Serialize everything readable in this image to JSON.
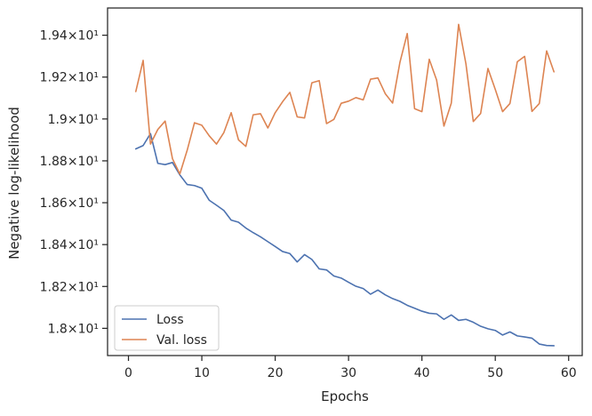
{
  "chart_data": {
    "type": "line",
    "title": "",
    "xlabel": "Epochs",
    "ylabel": "Negative log-likelihood",
    "xlim": [
      -2.85,
      61.85
    ],
    "ylim": [
      17.87,
      19.53
    ],
    "grid": false,
    "legend_position": "lower-left",
    "x_ticks": [
      0,
      10,
      20,
      30,
      40,
      50,
      60
    ],
    "x_tick_labels": [
      "0",
      "10",
      "20",
      "30",
      "40",
      "50",
      "60"
    ],
    "y_ticks": [
      18.0,
      18.2,
      18.4,
      18.6,
      18.8,
      19.0,
      19.2,
      19.4
    ],
    "y_tick_labels": [
      "1.8×10¹",
      "1.82×10¹",
      "1.84×10¹",
      "1.86×10¹",
      "1.88×10¹",
      "1.9×10¹",
      "1.92×10¹",
      "1.94×10¹"
    ],
    "x": [
      1,
      2,
      3,
      4,
      5,
      6,
      7,
      8,
      9,
      10,
      11,
      12,
      13,
      14,
      15,
      16,
      17,
      18,
      19,
      20,
      21,
      22,
      23,
      24,
      25,
      26,
      27,
      28,
      29,
      30,
      31,
      32,
      33,
      34,
      35,
      36,
      37,
      38,
      39,
      40,
      41,
      42,
      43,
      44,
      45,
      46,
      47,
      48,
      49,
      50,
      51,
      52,
      53,
      54,
      55,
      56,
      57,
      58
    ],
    "series": [
      {
        "name": "Loss",
        "color": "#4c72b0",
        "values": [
          18.857,
          18.873,
          18.93,
          18.788,
          18.782,
          18.792,
          18.733,
          18.687,
          18.682,
          18.669,
          18.612,
          18.588,
          18.563,
          18.517,
          18.507,
          18.479,
          18.457,
          18.437,
          18.414,
          18.391,
          18.367,
          18.357,
          18.317,
          18.352,
          18.329,
          18.284,
          18.279,
          18.25,
          18.24,
          18.22,
          18.201,
          18.19,
          18.163,
          18.183,
          18.16,
          18.142,
          18.129,
          18.11,
          18.096,
          18.082,
          18.072,
          18.069,
          18.043,
          18.064,
          18.038,
          18.043,
          18.029,
          18.01,
          17.998,
          17.99,
          17.968,
          17.983,
          17.964,
          17.959,
          17.953,
          17.925,
          17.918,
          17.917
        ]
      },
      {
        "name": "Val. loss",
        "color": "#dd8452",
        "values": [
          19.131,
          19.28,
          18.88,
          18.95,
          18.99,
          18.81,
          18.737,
          18.85,
          18.982,
          18.97,
          18.92,
          18.88,
          18.935,
          19.03,
          18.9,
          18.869,
          19.02,
          19.025,
          18.957,
          19.03,
          19.082,
          19.127,
          19.01,
          19.005,
          19.173,
          19.183,
          18.978,
          18.998,
          19.075,
          19.085,
          19.102,
          19.091,
          19.19,
          19.196,
          19.121,
          19.076,
          19.27,
          19.408,
          19.049,
          19.035,
          19.285,
          19.186,
          18.966,
          19.075,
          19.452,
          19.263,
          18.988,
          19.026,
          19.241,
          19.141,
          19.035,
          19.074,
          19.273,
          19.299,
          19.036,
          19.074,
          19.325,
          19.225
        ]
      }
    ]
  }
}
